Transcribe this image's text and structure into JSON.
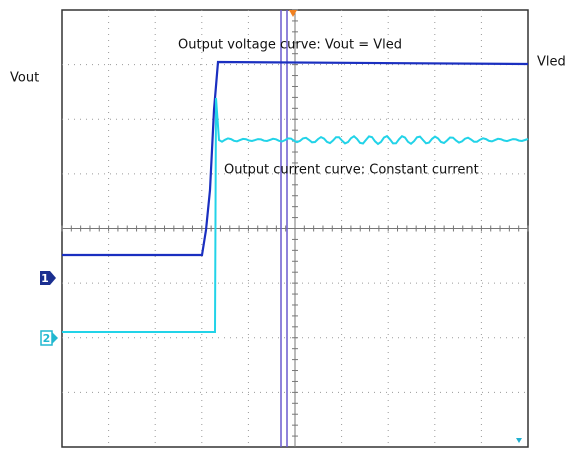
{
  "labels": {
    "vout": "Vout",
    "vled": "Vled",
    "voltage_curve": "Output voltage curve: Vout = Vled",
    "current_curve": "Output current curve: Constant current",
    "channel_1": "1",
    "channel_2": "2"
  }
}
